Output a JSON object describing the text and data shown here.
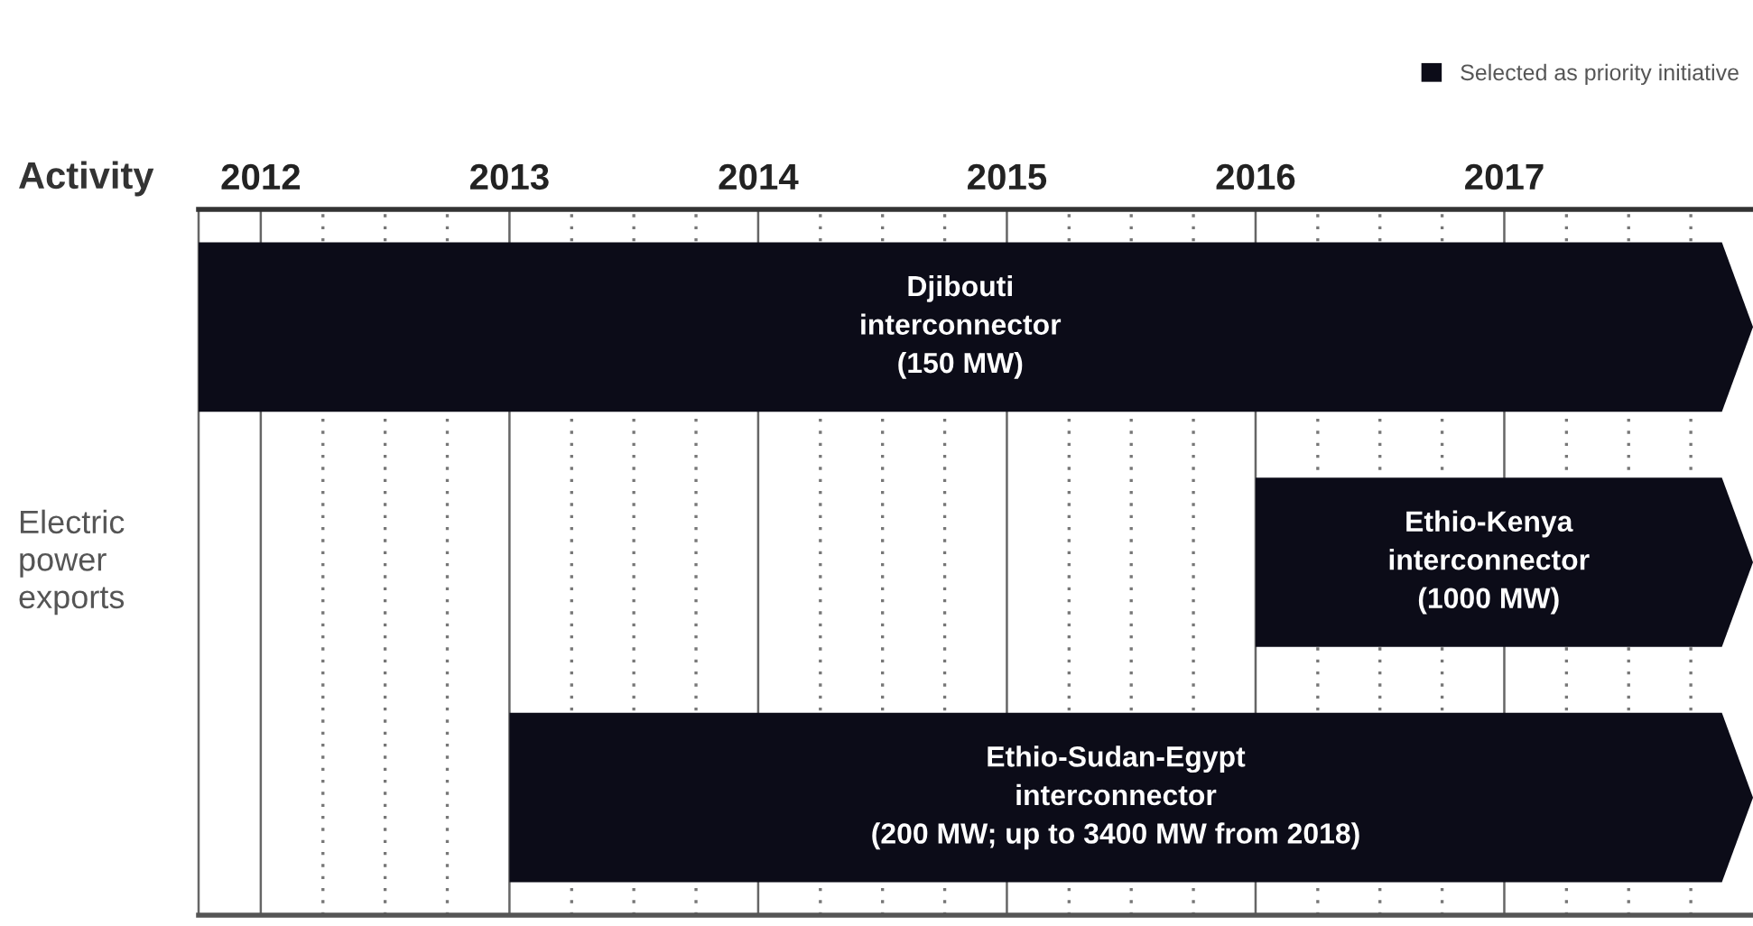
{
  "chart_data": {
    "type": "bar",
    "orientation": "horizontal",
    "ylabel": "Activity",
    "annotations": [
      "Electric\npower\nexports"
    ],
    "categories": [
      "Djibouti\ninterconnector\n(150 MW)",
      "Ethio-Kenya\ninterconnector\n(1000 MW)",
      "Ethio-Sudan-Egypt\ninterconnector\n(200 MW; up to 3400 MW from 2018)"
    ],
    "series": [
      {
        "name": "Selected as priority initiative",
        "color": "#0c0c18",
        "base": [
          2011.75,
          2016.0,
          2013.0
        ],
        "values": [
          6.25,
          2.0,
          5.0
        ]
      }
    ],
    "xlim": [
      2011.75,
      2018
    ],
    "xticks": [
      2012,
      {
        "value": 2012.25,
        "label": null
      },
      {
        "value": 2012.5,
        "label": null
      },
      {
        "value": 2012.75,
        "label": null
      },
      2013,
      {
        "value": 2013.25,
        "label": null
      },
      {
        "value": 2013.5,
        "label": null
      },
      {
        "value": 2013.75,
        "label": null
      },
      2014,
      {
        "value": 2014.25,
        "label": null
      },
      {
        "value": 2014.5,
        "label": null
      },
      {
        "value": 2014.75,
        "label": null
      },
      2015,
      {
        "value": 2015.25,
        "label": null
      },
      {
        "value": 2015.5,
        "label": null
      },
      {
        "value": 2015.75,
        "label": null
      },
      2016,
      {
        "value": 2016.25,
        "label": null
      },
      {
        "value": 2016.5,
        "label": null
      },
      {
        "value": 2016.75,
        "label": null
      },
      2017,
      {
        "value": 2017.25,
        "label": null
      },
      {
        "value": 2017.5,
        "label": null
      },
      {
        "value": 2017.75,
        "label": null
      }
    ],
    "grid": "x",
    "legend": "top right"
  }
}
